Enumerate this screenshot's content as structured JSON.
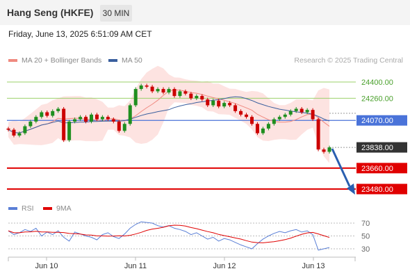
{
  "header": {
    "title": "Hang Seng (HKFE)",
    "timeframe": "30 MIN"
  },
  "datetime": "Friday, June 13, 2025 6:51:09 AM CET",
  "legend_top": [
    {
      "label": "MA 20 + Bollinger Bands",
      "color": "#f08a80"
    },
    {
      "label": "MA 50",
      "color": "#3a5f9e"
    }
  ],
  "legend_bottom": [
    {
      "label": "RSI",
      "color": "#5a7fd6"
    },
    {
      "label": "9MA",
      "color": "#e00000"
    }
  ],
  "credit": "Research © 2025 Trading Central",
  "colors": {
    "up": "#1f8f1f",
    "down": "#cc0000",
    "resistance": "#9bd06a",
    "support": "#e00000",
    "pivot": "#4a73d9",
    "arrow": "#2a5fb0"
  },
  "chart_data": {
    "type": "candlestick",
    "instrument": "Hang Seng (HKFE)",
    "timeframe": "30 MIN",
    "x_ticks": [
      "Jun 10",
      "Jun 11",
      "Jun 12",
      "Jun 13"
    ],
    "y_range": [
      23400,
      24500
    ],
    "close_path": [
      23990,
      23940,
      23960,
      24020,
      24060,
      24100,
      24140,
      24110,
      24150,
      24170,
      23900,
      24060,
      24080,
      24100,
      24060,
      24120,
      24080,
      24100,
      24080,
      24060,
      23980,
      24040,
      24200,
      24340,
      24370,
      24360,
      24320,
      24340,
      24310,
      24340,
      24280,
      24320,
      24300,
      24260,
      24280,
      24250,
      24200,
      24240,
      24190,
      24220,
      24200,
      24150,
      24120,
      24100,
      24040,
      23960,
      24000,
      24040,
      24080,
      24100,
      24120,
      24150,
      24170,
      24140,
      24160,
      24080,
      23820,
      23800,
      23838
    ],
    "price_levels": [
      {
        "value": "24400.00",
        "type": "resistance"
      },
      {
        "value": "24260.00",
        "type": "resistance"
      },
      {
        "value": "24070.00",
        "type": "pivot"
      },
      {
        "value": "23838.00",
        "type": "last"
      },
      {
        "value": "23660.00",
        "type": "support"
      },
      {
        "value": "23480.00",
        "type": "support"
      }
    ],
    "rsi": {
      "levels": [
        "70",
        "50",
        "30"
      ],
      "range": [
        10,
        90
      ],
      "values": [
        58,
        52,
        55,
        60,
        57,
        62,
        50,
        56,
        52,
        58,
        48,
        42,
        56,
        53,
        50,
        48,
        44,
        52,
        55,
        49,
        46,
        53,
        62,
        68,
        72,
        71,
        70,
        66,
        64,
        66,
        62,
        60,
        57,
        52,
        55,
        50,
        45,
        48,
        42,
        46,
        44,
        40,
        36,
        33,
        30,
        38,
        45,
        50,
        54,
        57,
        55,
        58,
        60,
        56,
        58,
        52,
        28,
        30,
        32
      ]
    }
  }
}
